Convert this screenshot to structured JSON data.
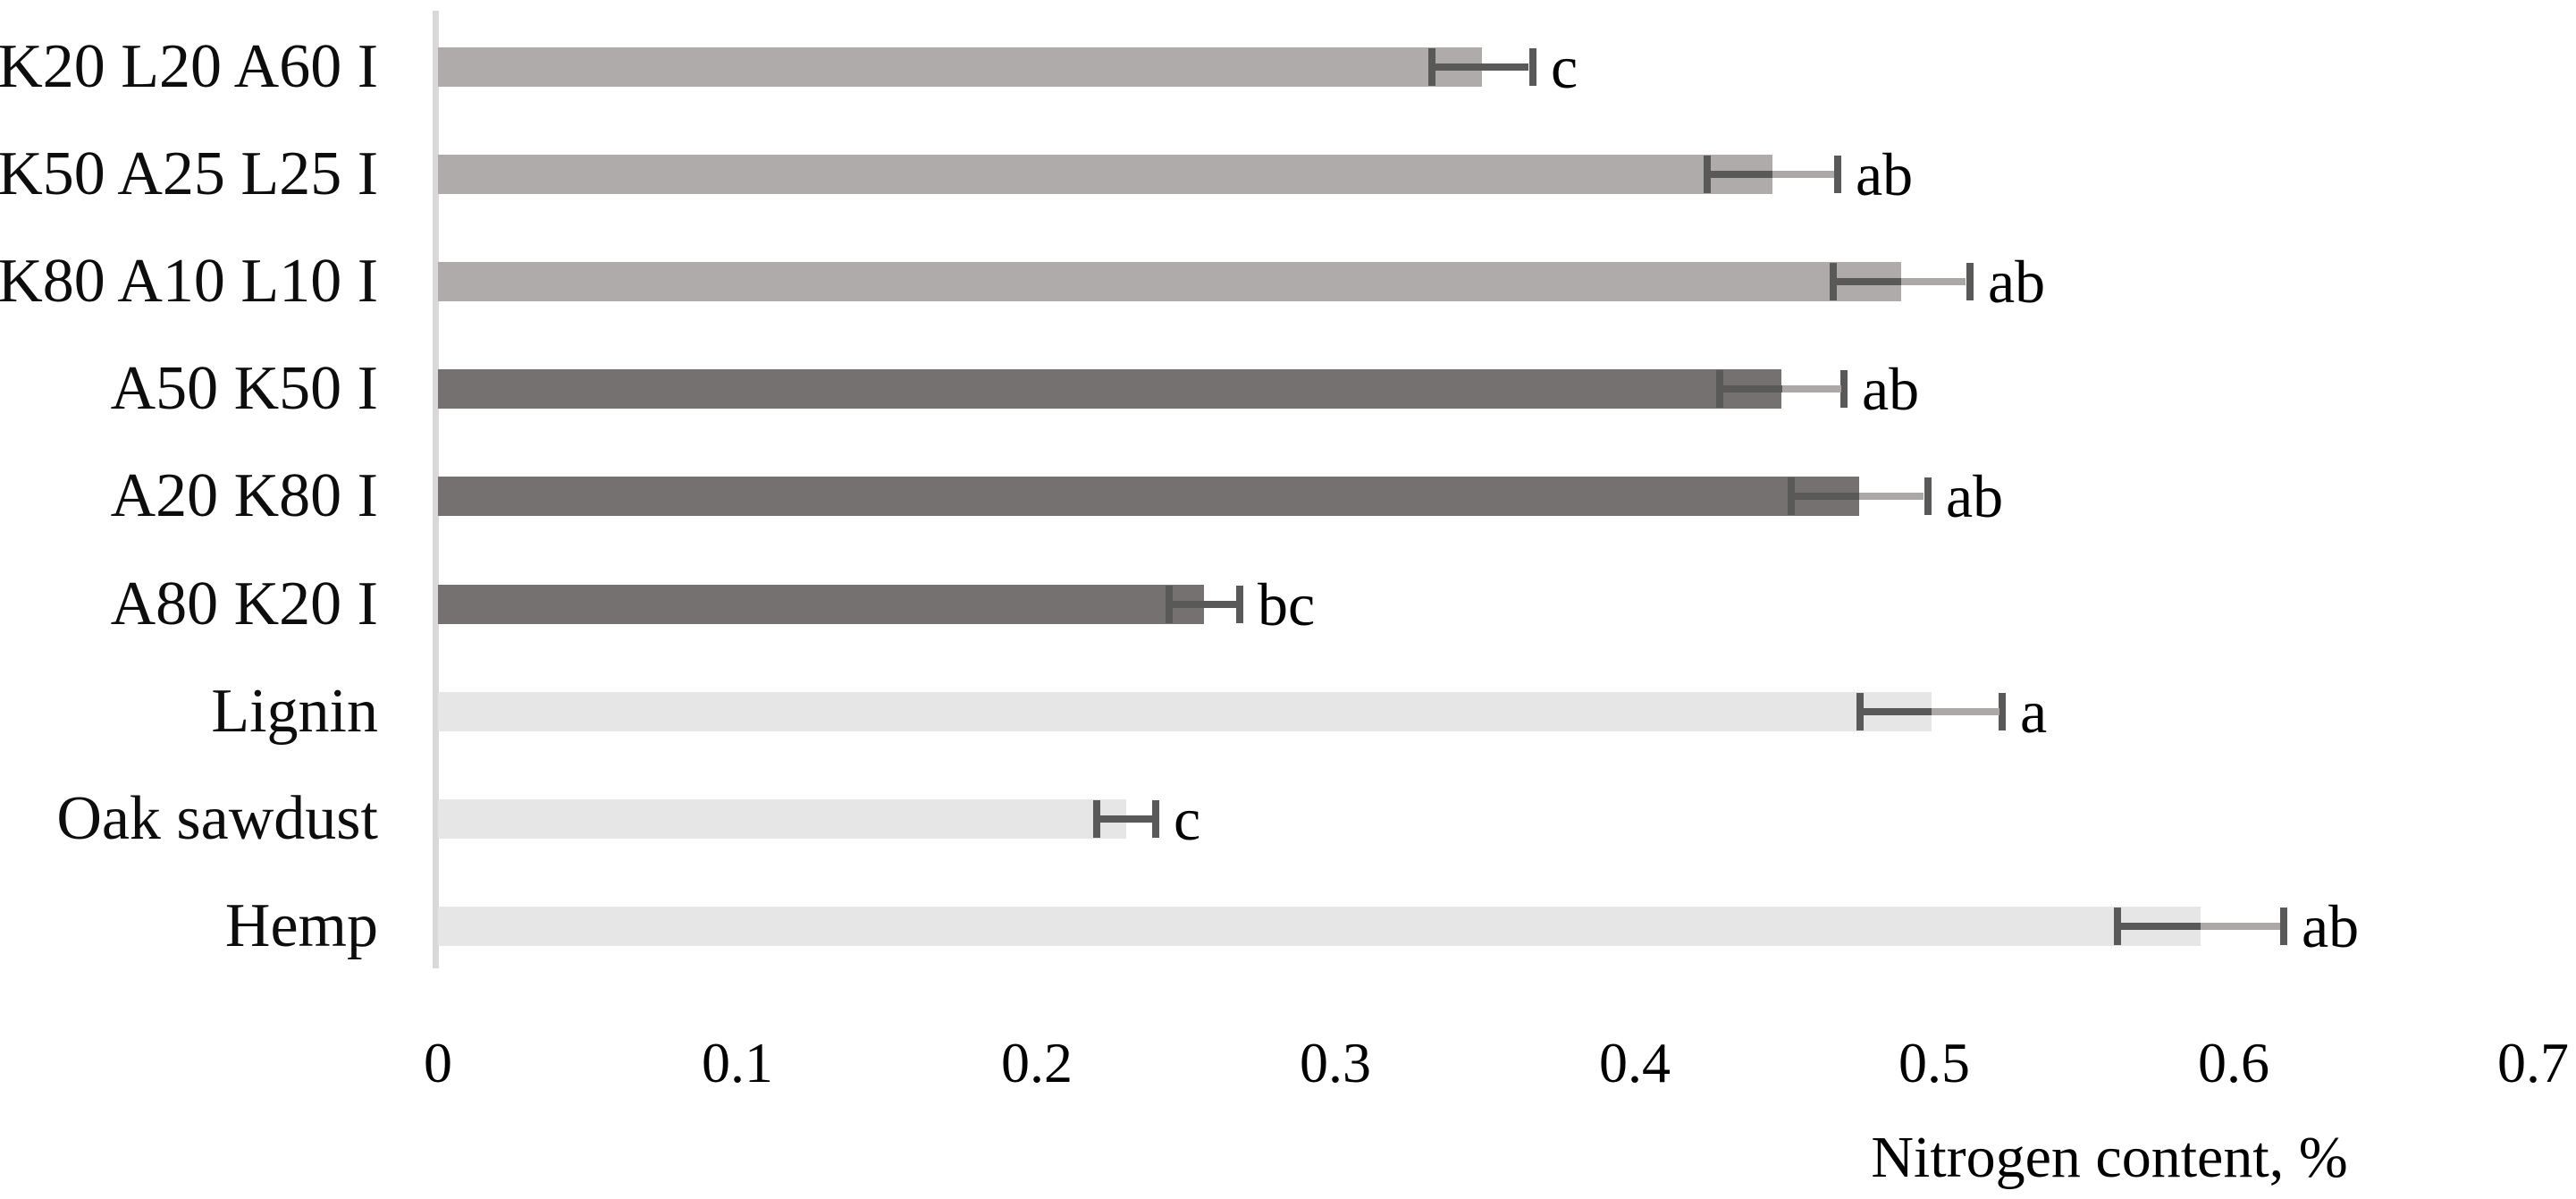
{
  "chart_data": {
    "type": "bar",
    "orientation": "horizontal",
    "title": "",
    "xlabel": "Nitrogen content, %",
    "ylabel": "",
    "xlim": [
      0,
      0.7
    ],
    "xticks": [
      0,
      0.1,
      0.2,
      0.3,
      0.4,
      0.5,
      0.6,
      0.7
    ],
    "xtick_labels": [
      "0",
      "0.1",
      "0.2",
      "0.3",
      "0.4",
      "0.5",
      "0.6",
      "0.7"
    ],
    "grid": false,
    "legend": "none",
    "categories": [
      "K20 L20 A60 I",
      "K50 A25 L25 I",
      "K80 A10 L10 I",
      "A50 K50 I",
      "A20 K80 I",
      "A80 K20 I",
      "Lignin",
      "Oak sawdust",
      "Hemp"
    ],
    "values": [
      0.349,
      0.446,
      0.489,
      0.449,
      0.475,
      0.256,
      0.499,
      0.23,
      0.589
    ],
    "errors": [
      0.018,
      0.023,
      0.024,
      0.022,
      0.024,
      0.013,
      0.025,
      0.011,
      0.029
    ],
    "sig_letters": [
      "c",
      "ab",
      "ab",
      "ab",
      "ab",
      "bc",
      "a",
      "c",
      "ab"
    ],
    "bar_colors": [
      "#AFABAB",
      "#AFABAB",
      "#AFABAB",
      "#767171",
      "#767171",
      "#767171",
      "#E7E6E6",
      "#E7E6E6",
      "#E7E6E6"
    ],
    "error_outer_light": [
      false,
      true,
      true,
      true,
      true,
      false,
      true,
      false,
      true
    ],
    "colors": {
      "medium_gray_bars": "#AFABAB",
      "dark_gray_bars": "#767171",
      "light_gray_bars": "#E7E6E6",
      "error_bar": "#595959",
      "error_bar_light_segment": "#ACA8A8",
      "axis_line": "#D9D9D9",
      "background": "#FFFFFF",
      "text": "#000000"
    }
  }
}
